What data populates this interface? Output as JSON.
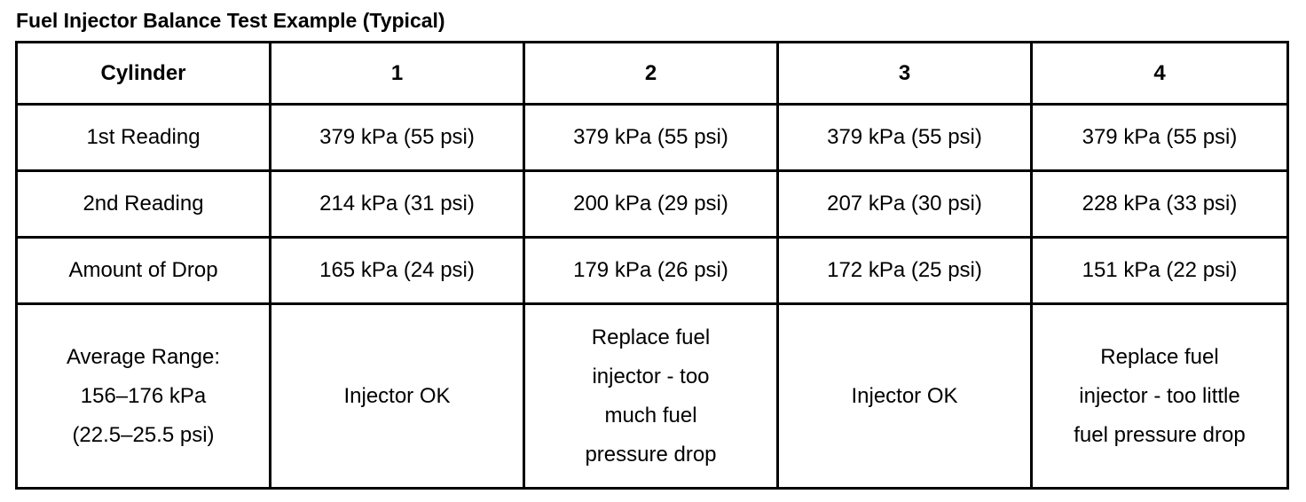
{
  "title": "Fuel Injector Balance Test Example (Typical)",
  "table": {
    "headers": [
      "Cylinder",
      "1",
      "2",
      "3",
      "4"
    ],
    "rows": [
      [
        "1st Reading",
        "379 kPa (55 psi)",
        "379 kPa (55 psi)",
        "379 kPa (55 psi)",
        "379 kPa (55 psi)"
      ],
      [
        "2nd Reading",
        "214 kPa (31 psi)",
        "200 kPa (29 psi)",
        "207 kPa (30 psi)",
        "228 kPa (33 psi)"
      ],
      [
        "Amount of Drop",
        "165 kPa (24 psi)",
        "179 kPa (26 psi)",
        "172 kPa (25 psi)",
        "151 kPa (22 psi)"
      ],
      [
        "Average Range:\n156–176 kPa\n(22.5–25.5 psi)",
        "Injector OK",
        "Replace fuel\ninjector - too\nmuch fuel\npressure drop",
        "Injector OK",
        "Replace fuel\ninjector - too little\nfuel pressure drop"
      ]
    ]
  }
}
